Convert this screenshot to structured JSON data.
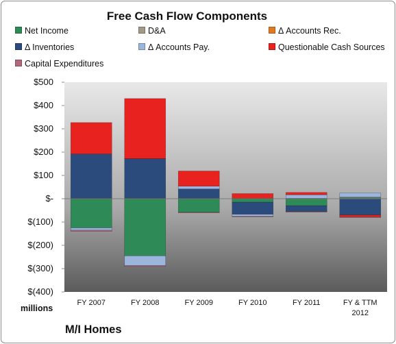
{
  "chart_data": {
    "type": "bar",
    "stacked": true,
    "title": "Free Cash Flow Components",
    "categories": [
      "FY 2007",
      "FY 2008",
      "FY 2009",
      "FY 2010",
      "FY 2011",
      "FY & TTM 2012"
    ],
    "series": [
      {
        "name": "Net Income",
        "color": "#2e8b57",
        "values": [
          -125,
          -245,
          -58,
          -15,
          -30,
          5
        ]
      },
      {
        "name": "D&A",
        "color": "#a09a86",
        "values": [
          2,
          2,
          2,
          2,
          2,
          2
        ]
      },
      {
        "name": "Δ Accounts Rec.",
        "color": "#e07a1f",
        "values": [
          0,
          0,
          0,
          0,
          0,
          0
        ]
      },
      {
        "name": "Δ Inventories",
        "color": "#2a4b7c",
        "values": [
          190,
          170,
          40,
          -52,
          -25,
          -70
        ]
      },
      {
        "name": "Δ Accounts Pay.",
        "color": "#9bb5dd",
        "values": [
          -10,
          -42,
          12,
          -8,
          15,
          18
        ]
      },
      {
        "name": "Questionable Cash Sources",
        "color": "#e8221f",
        "values": [
          135,
          258,
          65,
          20,
          10,
          -8
        ]
      },
      {
        "name": "Capital Expenditures",
        "color": "#b06a7c",
        "values": [
          -5,
          -4,
          -2,
          -2,
          -2,
          -3
        ]
      }
    ],
    "yticks": [
      "$500",
      "$400",
      "$300",
      "$200",
      "$100",
      "$-",
      "$(100)",
      "$(200)",
      "$(300)",
      "$(400)"
    ],
    "ylim": [
      -400,
      500
    ],
    "ylabel": "millions",
    "xlabel": "",
    "grid": false,
    "legend_position": "top"
  },
  "company_name": "M/I Homes"
}
